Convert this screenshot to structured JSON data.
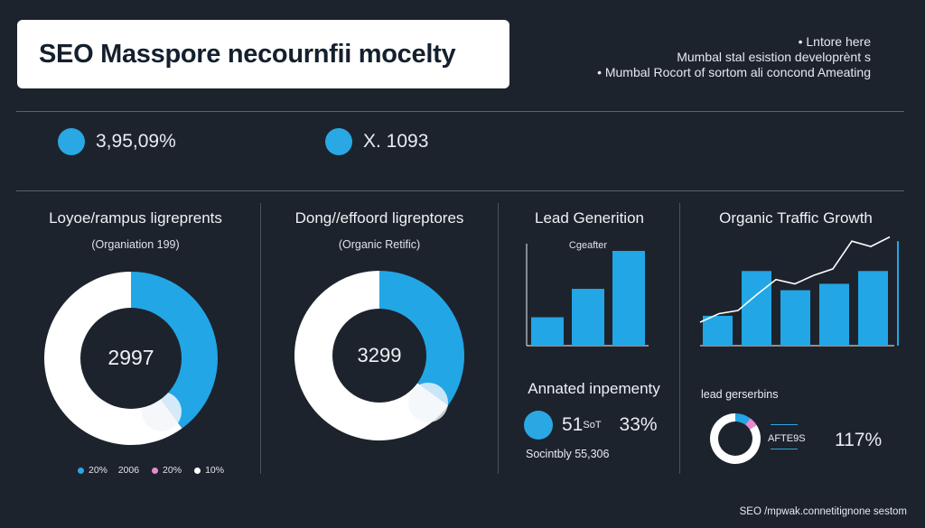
{
  "header": {
    "title": "SEO Masspore necournfii mocelty",
    "notes": [
      "• Lntore here",
      "Mumbal stal esistion developrènt s",
      "• Mumbal Rocort of sortom ali concond Ameating"
    ]
  },
  "kpis": [
    {
      "value": "3,95,09%",
      "color": "#2aa8e4"
    },
    {
      "value": "X. 1093",
      "color": "#2aa8e4"
    }
  ],
  "panels": {
    "donut1": {
      "title": "Loyoe/rampus ligreprents",
      "subtitle": "(Organiation 199)",
      "center": "2997"
    },
    "donut2": {
      "title": "Dong//effoord ligreptores",
      "subtitle": "(Organic Retific)",
      "center": "3299"
    },
    "lead": {
      "title": "Lead Generition",
      "bar_label": "Cgeafter"
    },
    "traffic": {
      "title": "Organic Traffic Growth"
    },
    "annotated": {
      "title": "Annated inpementy",
      "value1": "51",
      "value1_unit": "SoT",
      "value2": "33%",
      "caption": "Socintbly 55,306",
      "dot_color": "#2aa8e4"
    },
    "leadgen": {
      "title": "lead gerserbins",
      "label": "AFTE9S",
      "value": "117%"
    }
  },
  "legend": [
    {
      "label": "20%",
      "extra": "2006",
      "color": "#2aa8e4"
    },
    {
      "label": "20%",
      "extra": "",
      "color": "#e58ad0"
    },
    {
      "label": "10%",
      "extra": "",
      "color": "#ffffff"
    }
  ],
  "footer": {
    "text": "SEO /mpwak.connetitignone sestom"
  },
  "chart_data": [
    {
      "type": "pie",
      "title": "Loyoe/rampus ligreprents",
      "subtitle": "(Organiation 199)",
      "center_label": "2997",
      "labels": [
        "Blue share",
        "White share"
      ],
      "values": [
        40,
        60
      ],
      "colors": [
        "#22a6e6",
        "#ffffff"
      ]
    },
    {
      "type": "pie",
      "title": "Dong//effoord ligreptores",
      "subtitle": "(Organic Retific)",
      "center_label": "3299",
      "labels": [
        "Blue share",
        "White share"
      ],
      "values": [
        35,
        65
      ],
      "colors": [
        "#22a6e6",
        "#ffffff"
      ]
    },
    {
      "type": "bar",
      "title": "Lead Generition",
      "annotation": "Cgeafter",
      "categories": [
        "1",
        "2",
        "3"
      ],
      "values": [
        30,
        60,
        100
      ],
      "ylim": [
        0,
        100
      ],
      "color": "#22a6e6"
    },
    {
      "type": "bar",
      "title": "Organic Traffic Growth",
      "categories": [
        "1",
        "2",
        "3",
        "4",
        "5",
        "6",
        "7",
        "8",
        "9"
      ],
      "values": [
        28,
        0,
        0,
        70,
        0,
        0,
        0,
        0,
        0
      ],
      "bars": [
        28,
        70,
        52,
        58,
        70,
        98
      ],
      "line": [
        22,
        30,
        33,
        48,
        62,
        58,
        66,
        72,
        98,
        93,
        102
      ],
      "ylim": [
        0,
        110
      ],
      "color": "#22a6e6"
    },
    {
      "type": "pie",
      "title": "lead gerserbins",
      "labels": [
        "Blue",
        "Pink",
        "White"
      ],
      "values": [
        10,
        6,
        84
      ],
      "colors": [
        "#22a6e6",
        "#e58ad0",
        "#ffffff"
      ]
    }
  ]
}
